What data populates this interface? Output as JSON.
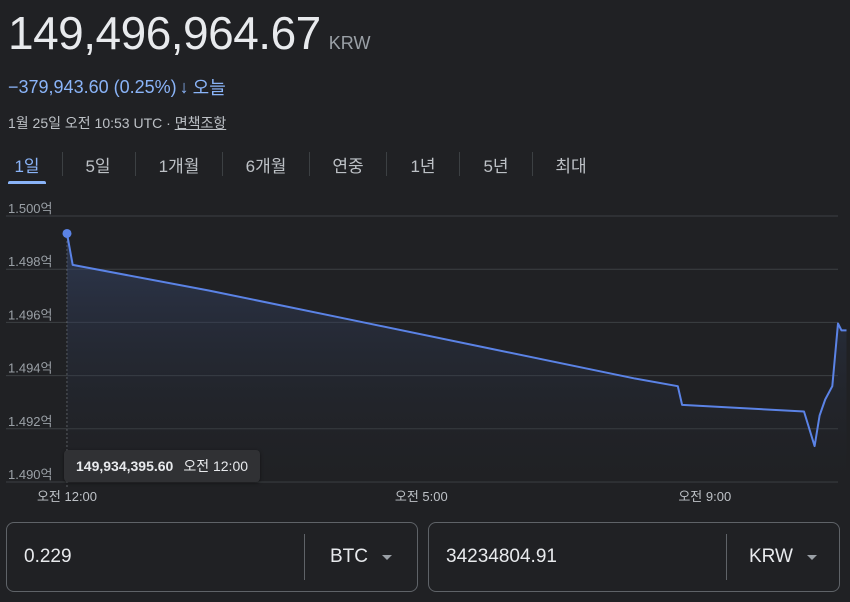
{
  "quote": {
    "price": "149,496,964.67",
    "currency": "KRW",
    "change": "−379,943.60 (0.25%)",
    "change_arrow": "↓",
    "change_period": "오늘",
    "timestamp": "1월 25일 오전 10:53 UTC · ",
    "disclaimer": "면책조항"
  },
  "tabs": [
    {
      "label": "1일",
      "active": true
    },
    {
      "label": "5일"
    },
    {
      "label": "1개월"
    },
    {
      "label": "6개월"
    },
    {
      "label": "연중"
    },
    {
      "label": "1년"
    },
    {
      "label": "5년"
    },
    {
      "label": "최대"
    }
  ],
  "tooltip": {
    "value": "149,934,395.60",
    "time": "오전 12:00"
  },
  "converter": {
    "left_value": "0.229",
    "left_unit": "BTC",
    "right_value": "34234804.91",
    "right_unit": "KRW"
  },
  "colors": {
    "line": "#5b83e6",
    "accent": "#8ab4f8",
    "grid": "#3c4043"
  },
  "chart_data": {
    "type": "line",
    "ylim": [
      149000000,
      150000000
    ],
    "y_ticks": [
      {
        "value": 150000000,
        "label": "1.500억"
      },
      {
        "value": 149800000,
        "label": "1.498억"
      },
      {
        "value": 149600000,
        "label": "1.496억"
      },
      {
        "value": 149400000,
        "label": "1.494억"
      },
      {
        "value": 149200000,
        "label": "1.492억"
      },
      {
        "value": 149000000,
        "label": "1.490억"
      }
    ],
    "x_ticks": [
      {
        "value": 0.0,
        "label": "오전 12:00"
      },
      {
        "value": 5.0,
        "label": "오전 5:00"
      },
      {
        "value": 9.0,
        "label": "오전 9:00"
      }
    ],
    "xlim": [
      0.0,
      10.88
    ],
    "x": [
      0.0,
      0.08,
      2.0,
      4.0,
      6.0,
      8.0,
      8.62,
      8.68,
      10.4,
      10.55,
      10.62,
      10.7,
      10.8,
      10.88,
      10.93,
      11.0
    ],
    "y": [
      149934395.6,
      149816000,
      149720000,
      149610000,
      149500000,
      149390000,
      149360000,
      149290000,
      149265000,
      149135000,
      149250000,
      149310000,
      149360000,
      149596000,
      149570000,
      149570000
    ],
    "marker_point": {
      "x": 0.0,
      "y": 149934395.6
    },
    "fill": "area-under-gradient",
    "grid": true
  }
}
